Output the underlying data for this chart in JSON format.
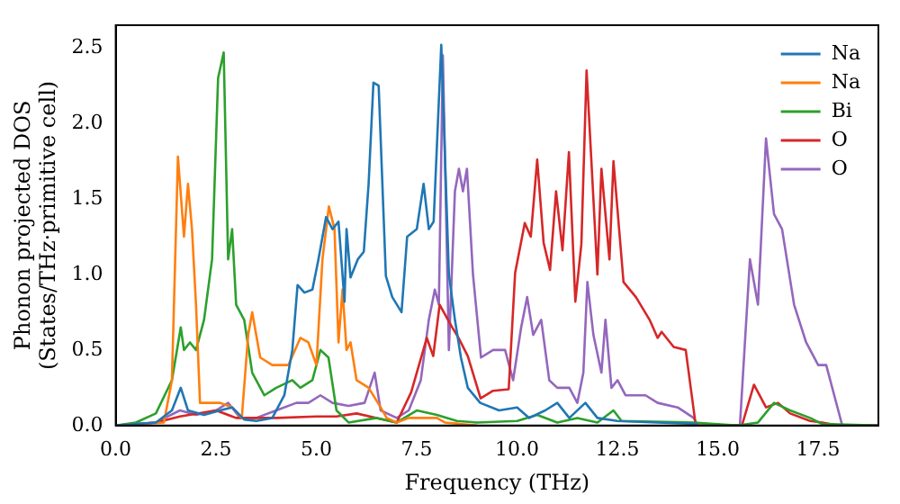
{
  "chart_data": {
    "type": "line",
    "xlabel": "Frequency (THz)",
    "ylabel": "Phonon projected DOS\n(States/THz·primitive cell)",
    "xlim": [
      0,
      19
    ],
    "ylim": [
      0,
      2.65
    ],
    "xticks": [
      {
        "value": 0,
        "label": "0.0"
      },
      {
        "value": 2.5,
        "label": "2.5"
      },
      {
        "value": 5,
        "label": "5.0"
      },
      {
        "value": 7.5,
        "label": "7.5"
      },
      {
        "value": 10,
        "label": "10.0"
      },
      {
        "value": 12.5,
        "label": "12.5"
      },
      {
        "value": 15,
        "label": "15.0"
      },
      {
        "value": 17.5,
        "label": "17.5"
      }
    ],
    "yticks": [
      {
        "value": 0,
        "label": "0.0"
      },
      {
        "value": 0.5,
        "label": "0.5"
      },
      {
        "value": 1,
        "label": "1.0"
      },
      {
        "value": 1.5,
        "label": "1.5"
      },
      {
        "value": 2,
        "label": "2.0"
      },
      {
        "value": 2.5,
        "label": "2.5"
      }
    ],
    "grid": false,
    "legend": "top right",
    "marker": "none",
    "line_style": "solid",
    "series": [
      {
        "name": "Na",
        "color": "#1f77b4",
        "x": [
          0,
          1.0,
          1.4,
          1.62,
          1.8,
          2.2,
          2.6,
          2.9,
          3.2,
          3.5,
          3.9,
          4.2,
          4.4,
          4.53,
          4.7,
          4.9,
          5.05,
          5.24,
          5.4,
          5.55,
          5.7,
          5.75,
          5.85,
          6.03,
          6.18,
          6.3,
          6.42,
          6.55,
          6.73,
          6.89,
          7.12,
          7.26,
          7.5,
          7.67,
          7.8,
          7.92,
          8.11,
          8.3,
          8.45,
          8.6,
          8.77,
          9.08,
          9.55,
          10,
          10.3,
          10.7,
          11,
          11.3,
          11.7,
          12,
          12.5,
          13.5,
          14.5
        ],
        "values": [
          0,
          0.02,
          0.1,
          0.25,
          0.1,
          0.07,
          0.1,
          0.12,
          0.04,
          0.03,
          0.05,
          0.2,
          0.5,
          0.93,
          0.88,
          0.9,
          1.1,
          1.38,
          1.3,
          1.35,
          0.82,
          1.3,
          0.98,
          1.1,
          1.15,
          1.6,
          2.27,
          2.25,
          0.99,
          0.85,
          0.75,
          1.25,
          1.3,
          1.6,
          1.3,
          1.35,
          2.52,
          1.0,
          0.7,
          0.45,
          0.25,
          0.15,
          0.1,
          0.12,
          0.05,
          0.1,
          0.15,
          0.05,
          0.15,
          0.05,
          0.03,
          0.02,
          0.01
        ]
      },
      {
        "name": "Na",
        "color": "#ff7f0e",
        "x": [
          0,
          1.2,
          1.4,
          1.55,
          1.7,
          1.8,
          1.9,
          2.0,
          2.1,
          2.6,
          2.9,
          3.14,
          3.3,
          3.4,
          3.6,
          3.9,
          4.3,
          4.6,
          4.8,
          5.0,
          5.15,
          5.31,
          5.45,
          5.55,
          5.65,
          5.75,
          5.85,
          6.0,
          6.3,
          6.6,
          6.75,
          7.0,
          7.3,
          8.0,
          8.2,
          9
        ],
        "values": [
          0,
          0.02,
          0.3,
          1.78,
          1.25,
          1.6,
          1.3,
          0.8,
          0.15,
          0.15,
          0.12,
          0.05,
          0.6,
          0.75,
          0.45,
          0.4,
          0.4,
          0.58,
          0.55,
          0.4,
          1.1,
          1.45,
          1.3,
          0.55,
          0.9,
          0.5,
          0.55,
          0.3,
          0.25,
          0.12,
          0.05,
          0.02,
          0.05,
          0.05,
          0.02,
          0
        ]
      },
      {
        "name": "Bi",
        "color": "#2ca02c",
        "x": [
          0,
          0.5,
          1.0,
          1.4,
          1.62,
          1.7,
          1.85,
          2.0,
          2.2,
          2.4,
          2.55,
          2.69,
          2.8,
          2.9,
          3.0,
          3.2,
          3.4,
          3.7,
          4.0,
          4.4,
          4.6,
          4.9,
          5.1,
          5.3,
          5.5,
          5.8,
          6.5,
          7.0,
          7.5,
          8.0,
          8.5,
          9,
          10,
          10.5,
          11,
          11.5,
          12,
          12.4,
          12.6,
          14.4,
          15.5,
          16.0,
          16.4,
          16.8,
          17.3,
          17.6,
          19
        ],
        "values": [
          0,
          0.02,
          0.08,
          0.3,
          0.65,
          0.5,
          0.55,
          0.5,
          0.7,
          1.1,
          2.3,
          2.47,
          1.1,
          1.3,
          0.8,
          0.7,
          0.35,
          0.2,
          0.25,
          0.3,
          0.25,
          0.3,
          0.5,
          0.45,
          0.1,
          0.02,
          0.05,
          0.02,
          0.1,
          0.07,
          0.03,
          0.02,
          0.03,
          0.07,
          0.02,
          0.05,
          0.02,
          0.1,
          0.03,
          0.02,
          0,
          0.02,
          0.15,
          0.1,
          0.05,
          0.01,
          0
        ]
      },
      {
        "name": "O",
        "color": "#d62728",
        "x": [
          0,
          1,
          1.6,
          2.5,
          3,
          4,
          5,
          5.5,
          6,
          6.5,
          7.0,
          7.36,
          7.75,
          7.91,
          8.07,
          8.38,
          8.54,
          8.77,
          9.09,
          9.4,
          9.79,
          9.95,
          10.19,
          10.34,
          10.5,
          10.66,
          10.82,
          10.97,
          11.13,
          11.29,
          11.45,
          11.6,
          11.73,
          12.0,
          12.1,
          12.3,
          12.4,
          12.65,
          12.96,
          13.3,
          13.5,
          13.6,
          13.9,
          14.2,
          14.45,
          15.6,
          15.9,
          16.2,
          16.5,
          16.8,
          17.3,
          17.6,
          18,
          19
        ],
        "values": [
          0,
          0.02,
          0.06,
          0.1,
          0.05,
          0.05,
          0.06,
          0.06,
          0.08,
          0.05,
          0.02,
          0.22,
          0.58,
          0.46,
          0.8,
          0.65,
          0.58,
          0.46,
          0.18,
          0.23,
          0.24,
          1.01,
          1.34,
          1.25,
          1.76,
          1.21,
          1.03,
          1.55,
          1.16,
          1.81,
          0.82,
          1.2,
          2.35,
          1.0,
          1.7,
          1.1,
          1.75,
          0.95,
          0.85,
          0.7,
          0.58,
          0.62,
          0.52,
          0.5,
          0,
          0,
          0.27,
          0.12,
          0.15,
          0.08,
          0.03,
          0.02,
          0,
          0
        ]
      },
      {
        "name": "O",
        "color": "#9467bd",
        "x": [
          0,
          1,
          1.6,
          2,
          2.5,
          2.8,
          3.1,
          3.5,
          4,
          4.5,
          4.8,
          5.1,
          5.4,
          5.8,
          6.2,
          6.45,
          6.6,
          7.0,
          7.3,
          7.6,
          7.8,
          7.95,
          8.05,
          8.15,
          8.3,
          8.45,
          8.55,
          8.65,
          8.75,
          8.9,
          9.1,
          9.4,
          9.7,
          9.9,
          10.1,
          10.25,
          10.4,
          10.6,
          10.8,
          11.0,
          11.3,
          11.5,
          11.65,
          11.75,
          11.9,
          12.1,
          12.2,
          12.35,
          12.5,
          12.7,
          13.2,
          13.5,
          14.0,
          14.4,
          14.5,
          15.55,
          15.8,
          16.0,
          16.2,
          16.4,
          16.6,
          16.9,
          17.2,
          17.5,
          17.7,
          17.9,
          18.1,
          19
        ],
        "values": [
          0,
          0.02,
          0.1,
          0.07,
          0.1,
          0.15,
          0.05,
          0.05,
          0.1,
          0.15,
          0.15,
          0.2,
          0.15,
          0.13,
          0.15,
          0.35,
          0.1,
          0.05,
          0.1,
          0.3,
          0.7,
          0.9,
          0.8,
          2.45,
          0.5,
          1.55,
          1.7,
          1.55,
          1.7,
          1.0,
          0.45,
          0.5,
          0.5,
          0.3,
          0.65,
          0.85,
          0.6,
          0.7,
          0.3,
          0.25,
          0.25,
          0.15,
          0.35,
          0.95,
          0.6,
          0.35,
          0.7,
          0.25,
          0.3,
          0.2,
          0.2,
          0.15,
          0.12,
          0.05,
          0,
          0,
          1.1,
          0.8,
          1.9,
          1.4,
          1.3,
          0.8,
          0.55,
          0.4,
          0.4,
          0.2,
          0,
          0
        ]
      }
    ]
  }
}
